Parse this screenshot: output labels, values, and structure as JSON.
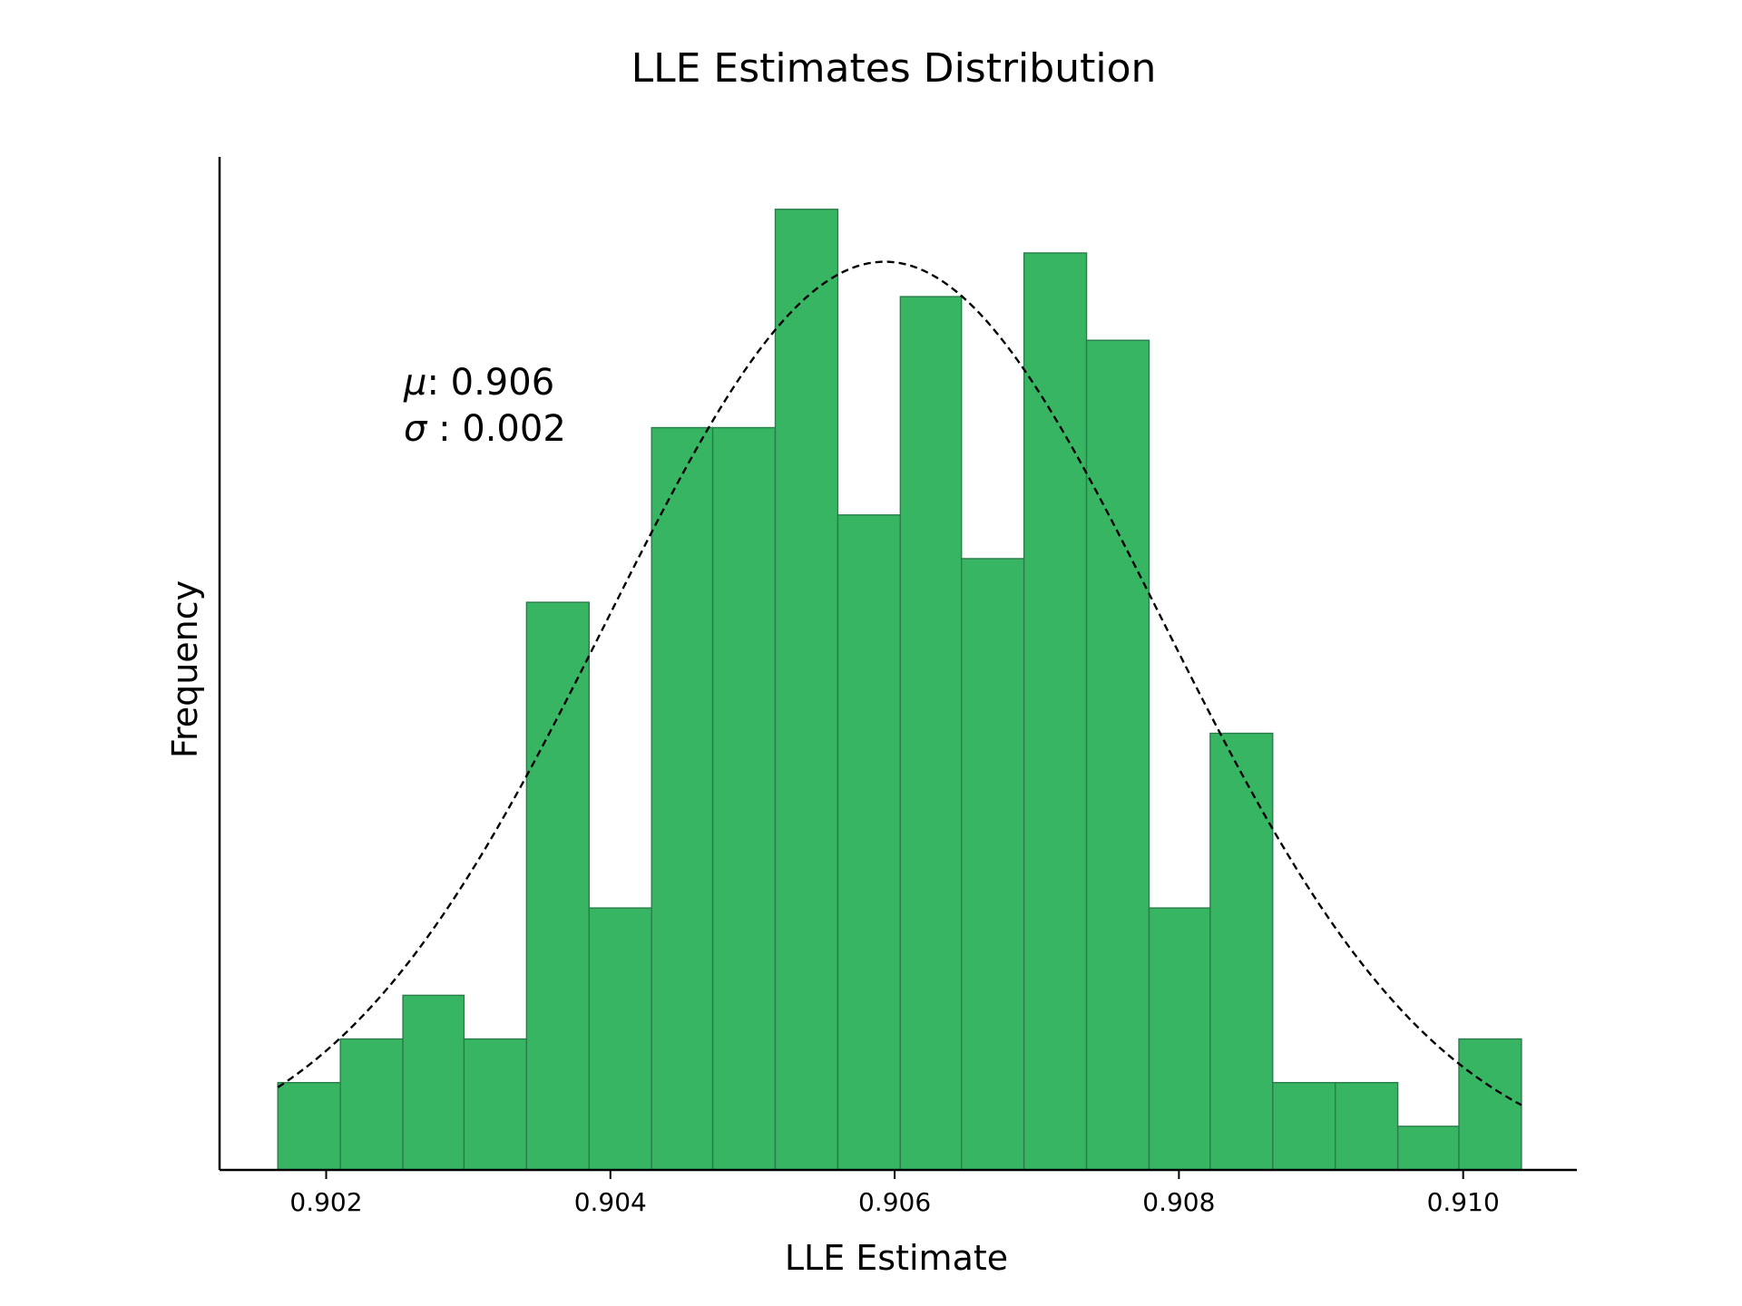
{
  "chart_data": {
    "type": "bar",
    "title": "LLE Estimates Distribution",
    "xlabel": "LLE Estimate",
    "ylabel": "Frequency",
    "xlim": [
      0.90125,
      0.9108
    ],
    "ylim": [
      0,
      23.2
    ],
    "x_ticks": [
      "0.902",
      "0.904",
      "0.906",
      "0.908",
      "0.910"
    ],
    "y_ticks_visible": false,
    "bin_edges": [
      0.90166,
      0.9021,
      0.90254,
      0.90297,
      0.90341,
      0.90385,
      0.90429,
      0.90472,
      0.90516,
      0.9056,
      0.90604,
      0.90647,
      0.90691,
      0.90735,
      0.90779,
      0.90822,
      0.90866,
      0.9091,
      0.90954,
      0.90997,
      0.91041
    ],
    "values": [
      2,
      3,
      4,
      3,
      13,
      6,
      17,
      17,
      22,
      15,
      20,
      14,
      21,
      19,
      6,
      10,
      2,
      2,
      1,
      3
    ],
    "bar_color": "#37b563",
    "bar_edge_color": "#2a7d4a",
    "fit": {
      "type": "normal",
      "mean": 0.90593,
      "std": 0.00195,
      "peak": 20.8,
      "line_style": "dashed",
      "color": "#000000"
    },
    "annotation": {
      "mu_symbol": "μ",
      "mu_text": ": 0.906",
      "sigma_symbol": "σ",
      "sigma_text": " : 0.002"
    },
    "grid": false,
    "legend": "none"
  }
}
